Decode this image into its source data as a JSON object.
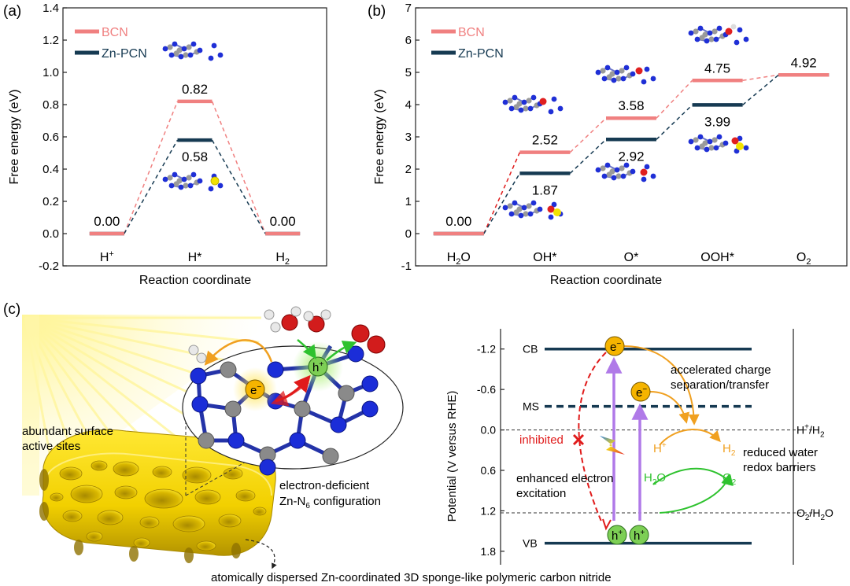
{
  "chart_data": [
    {
      "type": "line",
      "panel_label": "(a)",
      "xlabel": "Reaction coordinate",
      "ylabel": "Free energy (eV)",
      "ylim": [
        -0.2,
        1.4
      ],
      "yticks": [
        "-0.2",
        "0.0",
        "0.2",
        "0.4",
        "0.6",
        "0.8",
        "1.0",
        "1.2",
        "1.4"
      ],
      "categories": [
        "H+",
        "H*",
        "H2"
      ],
      "category_labels": [
        {
          "main": "H",
          "sup": "+",
          "sub": ""
        },
        {
          "main": "H*",
          "sup": "",
          "sub": ""
        },
        {
          "main": "H",
          "sup": "",
          "sub": "2"
        }
      ],
      "legend": "top-left",
      "series": [
        {
          "name": "BCN",
          "color": "#f08080",
          "values": [
            0.0,
            0.82,
            0.0
          ],
          "labels": [
            "0.00",
            "0.82",
            "0.00"
          ]
        },
        {
          "name": "Zn-PCN",
          "color": "#163a52",
          "values": [
            0.0,
            0.58,
            0.0
          ],
          "labels": [
            "",
            "0.58",
            ""
          ]
        }
      ]
    },
    {
      "type": "line",
      "panel_label": "(b)",
      "xlabel": "Reaction coordinate",
      "ylabel": "Free energy (eV)",
      "ylim": [
        -1,
        7
      ],
      "yticks": [
        "-1",
        "0",
        "1",
        "2",
        "3",
        "4",
        "5",
        "6",
        "7"
      ],
      "categories": [
        "H2O",
        "OH*",
        "O*",
        "OOH*",
        "O2"
      ],
      "category_labels": [
        {
          "main": "H",
          "sub": "2",
          "tail": "O"
        },
        {
          "main": "OH*",
          "sub": "",
          "tail": ""
        },
        {
          "main": "O*",
          "sub": "",
          "tail": ""
        },
        {
          "main": "OOH*",
          "sub": "",
          "tail": ""
        },
        {
          "main": "O",
          "sub": "2",
          "tail": ""
        }
      ],
      "legend": "top-left",
      "series": [
        {
          "name": "BCN",
          "color": "#f08080",
          "values": [
            0.0,
            2.52,
            3.58,
            4.75,
            4.92
          ],
          "labels": [
            "0.00",
            "2.52",
            "3.58",
            "4.75",
            "4.92"
          ]
        },
        {
          "name": "Zn-PCN",
          "color": "#163a52",
          "values": [
            0.0,
            1.87,
            2.92,
            3.99,
            4.92
          ],
          "labels": [
            "",
            "1.87",
            "2.92",
            "3.99",
            ""
          ]
        }
      ]
    },
    {
      "type": "line",
      "panel_label": "",
      "ylabel": "Potential (V versus RHE)",
      "ylim": [
        -1.5,
        2.0
      ],
      "yticks": [
        "-1.2",
        "-0.6",
        "0.0",
        "0.6",
        "1.2",
        "1.8"
      ],
      "levels": [
        {
          "label": "CB",
          "value": -1.2,
          "style": "solid"
        },
        {
          "label": "MS",
          "value": -0.35,
          "style": "dashed"
        },
        {
          "label": "VB",
          "value": 1.68,
          "style": "solid"
        }
      ],
      "references": [
        {
          "main": "H",
          "sup": "+",
          "sub": "",
          "tail": "/H",
          "tail_sub": "2",
          "value": 0.0
        },
        {
          "main": "O",
          "sup": "",
          "sub": "2",
          "tail": "/H",
          "tail_sub": "2",
          "tail2": "O",
          "value": 1.23
        }
      ]
    }
  ],
  "panel_c": {
    "panel_label": "(c)",
    "caption": "atomically dispersed Zn-coordinated 3D sponge-like polymeric carbon nitride",
    "sites_label_line1": "abundant surface",
    "sites_label_line2": "active sites",
    "zn_label_line1": "electron-deficient",
    "zn_label_main": "Zn-N",
    "zn_label_sub": "6",
    "zn_label_tail": " configuration",
    "electron_symbol": "e",
    "hole_symbol": "h",
    "minus_sign": "−",
    "plus_sign": "+",
    "band": {
      "accelerated_line1": "accelerated charge",
      "accelerated_line2": "separation/transfer",
      "inhibited": "inhibited",
      "enhanced_line1": "enhanced electron",
      "enhanced_line2": "excitation",
      "reduced_line1": "reduced water",
      "reduced_line2": "redox barriers",
      "h_plus": "H",
      "h2": "H",
      "h2o": "H",
      "o2": "O",
      "sub2": "2",
      "o_tail": "O"
    }
  },
  "colors": {
    "bcn": "#f08080",
    "znpcn": "#163a52",
    "electron": "#f5b400",
    "hole": "#7dcf55",
    "orange_arrow": "#f0a020",
    "green_arrow": "#2ec22e",
    "red": "#e01b1b",
    "violet": "#b07ae8"
  }
}
